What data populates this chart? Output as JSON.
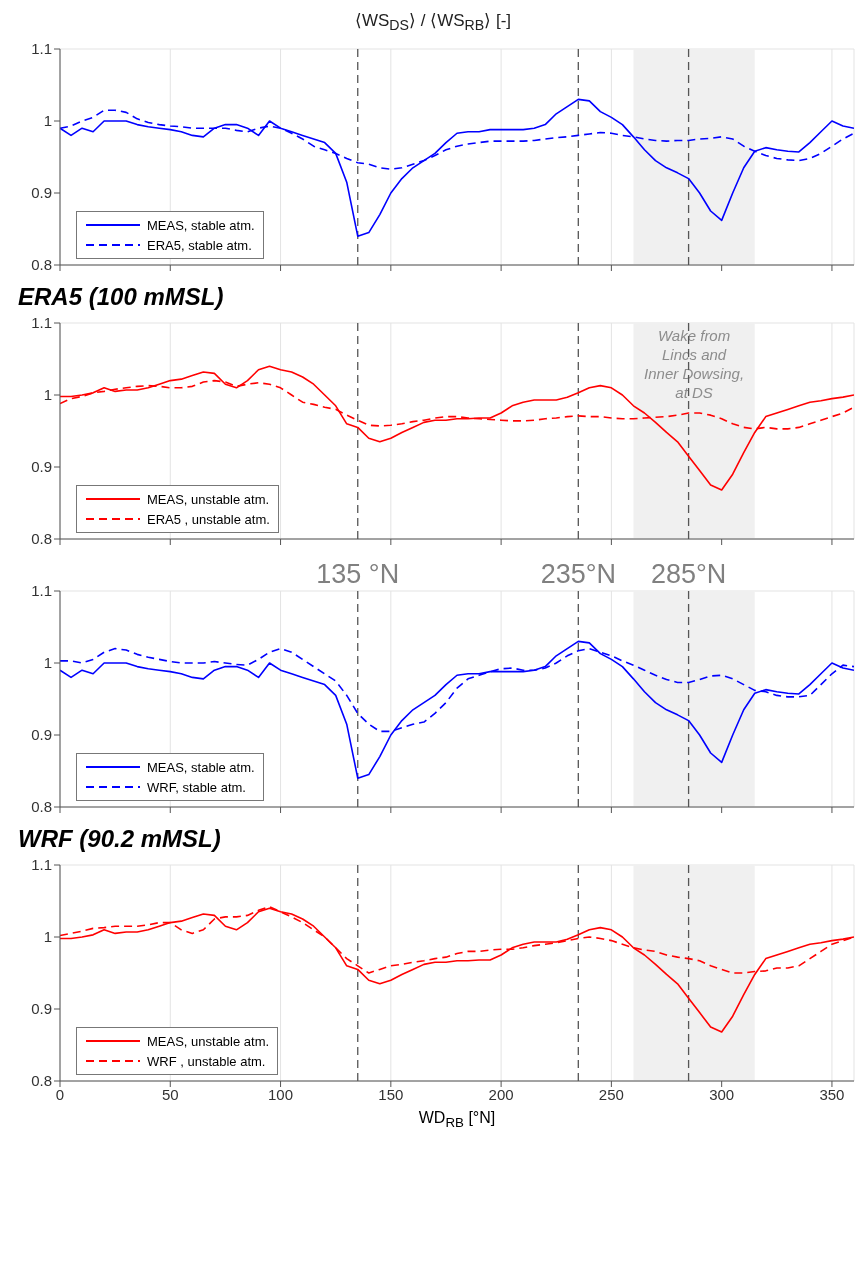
{
  "chart_data": [
    {
      "type": "line",
      "title": "⟨WS$_{DS}$⟩ / ⟨WS$_{RB}$⟩ [-]",
      "x": [
        0,
        5,
        10,
        15,
        20,
        25,
        30,
        35,
        40,
        45,
        50,
        55,
        60,
        65,
        70,
        75,
        80,
        85,
        90,
        95,
        100,
        105,
        110,
        115,
        120,
        125,
        130,
        135,
        140,
        145,
        150,
        155,
        160,
        165,
        170,
        175,
        180,
        185,
        190,
        195,
        200,
        205,
        210,
        215,
        220,
        225,
        230,
        235,
        240,
        245,
        250,
        255,
        260,
        265,
        270,
        275,
        280,
        285,
        290,
        295,
        300,
        305,
        310,
        315,
        320,
        325,
        330,
        335,
        340,
        345,
        350,
        355,
        360
      ],
      "xlim": [
        0,
        360
      ],
      "xticks": [
        0,
        50,
        100,
        150,
        200,
        250,
        300,
        350
      ],
      "ylim": [
        0.8,
        1.1
      ],
      "yticks": [
        0.8,
        0.9,
        1,
        1.1
      ],
      "grid": true,
      "legend": "bottom left",
      "tick_labels": "y",
      "series": [
        {
          "name": "MEAS, stable atm.",
          "color": "#0000ff",
          "line_style": "solid",
          "values": [
            0.99,
            0.98,
            0.99,
            0.985,
            1.0,
            1.0,
            1.0,
            0.995,
            0.992,
            0.99,
            0.988,
            0.985,
            0.98,
            0.978,
            0.99,
            0.995,
            0.995,
            0.99,
            0.98,
            1.0,
            0.99,
            0.985,
            0.98,
            0.975,
            0.97,
            0.955,
            0.915,
            0.84,
            0.845,
            0.87,
            0.9,
            0.92,
            0.935,
            0.945,
            0.955,
            0.97,
            0.983,
            0.985,
            0.985,
            0.988,
            0.988,
            0.988,
            0.988,
            0.99,
            0.995,
            1.01,
            1.02,
            1.03,
            1.028,
            1.013,
            1.005,
            0.995,
            0.978,
            0.96,
            0.945,
            0.935,
            0.928,
            0.92,
            0.9,
            0.875,
            0.862,
            0.9,
            0.935,
            0.958,
            0.963,
            0.96,
            0.958,
            0.957,
            0.97,
            0.985,
            1.0,
            0.993,
            0.99
          ]
        },
        {
          "name": "ERA5, stable atm.",
          "color": "#0000ff",
          "line_style": "dashed",
          "values": [
            0.99,
            0.993,
            1.0,
            1.005,
            1.015,
            1.015,
            1.012,
            1.003,
            0.998,
            0.995,
            0.993,
            0.992,
            0.99,
            0.99,
            0.99,
            0.99,
            0.987,
            0.985,
            0.99,
            0.993,
            0.99,
            0.983,
            0.975,
            0.965,
            0.96,
            0.955,
            0.948,
            0.942,
            0.94,
            0.935,
            0.933,
            0.935,
            0.94,
            0.945,
            0.952,
            0.96,
            0.965,
            0.968,
            0.97,
            0.972,
            0.972,
            0.972,
            0.972,
            0.973,
            0.975,
            0.977,
            0.978,
            0.98,
            0.982,
            0.984,
            0.983,
            0.98,
            0.978,
            0.975,
            0.973,
            0.972,
            0.973,
            0.973,
            0.975,
            0.976,
            0.978,
            0.975,
            0.965,
            0.958,
            0.952,
            0.948,
            0.946,
            0.945,
            0.948,
            0.955,
            0.965,
            0.975,
            0.983
          ]
        }
      ],
      "ref_lines": [
        {
          "axis": "x",
          "value": 135,
          "color": "#555555",
          "line_style": "dashed"
        },
        {
          "axis": "x",
          "value": 235,
          "color": "#555555",
          "line_style": "dashed"
        },
        {
          "axis": "x",
          "value": 285,
          "color": "#555555",
          "line_style": "dashed"
        }
      ],
      "bands": [
        {
          "axis": "x",
          "from": 260,
          "to": 315,
          "color": "#f0f0f0"
        }
      ]
    },
    {
      "type": "line",
      "title": "ERA5 (100 mMSL)",
      "x": [
        0,
        5,
        10,
        15,
        20,
        25,
        30,
        35,
        40,
        45,
        50,
        55,
        60,
        65,
        70,
        75,
        80,
        85,
        90,
        95,
        100,
        105,
        110,
        115,
        120,
        125,
        130,
        135,
        140,
        145,
        150,
        155,
        160,
        165,
        170,
        175,
        180,
        185,
        190,
        195,
        200,
        205,
        210,
        215,
        220,
        225,
        230,
        235,
        240,
        245,
        250,
        255,
        260,
        265,
        270,
        275,
        280,
        285,
        290,
        295,
        300,
        305,
        310,
        315,
        320,
        325,
        330,
        335,
        340,
        345,
        350,
        355,
        360
      ],
      "xlim": [
        0,
        360
      ],
      "xticks": [
        0,
        50,
        100,
        150,
        200,
        250,
        300,
        350
      ],
      "ylim": [
        0.8,
        1.1
      ],
      "yticks": [
        0.8,
        0.9,
        1,
        1.1
      ],
      "grid": true,
      "legend": "bottom left",
      "tick_labels": "y",
      "series": [
        {
          "name": "MEAS, unstable atm.",
          "color": "#ff0000",
          "line_style": "solid",
          "values": [
            0.998,
            0.998,
            1.0,
            1.003,
            1.01,
            1.005,
            1.007,
            1.007,
            1.01,
            1.015,
            1.02,
            1.022,
            1.027,
            1.032,
            1.03,
            1.015,
            1.01,
            1.02,
            1.035,
            1.04,
            1.035,
            1.032,
            1.025,
            1.015,
            1.0,
            0.985,
            0.96,
            0.955,
            0.94,
            0.935,
            0.94,
            0.948,
            0.955,
            0.962,
            0.965,
            0.965,
            0.967,
            0.967,
            0.968,
            0.968,
            0.975,
            0.985,
            0.99,
            0.993,
            0.993,
            0.993,
            0.997,
            1.003,
            1.01,
            1.013,
            1.01,
            1.0,
            0.985,
            0.975,
            0.962,
            0.948,
            0.935,
            0.915,
            0.895,
            0.875,
            0.868,
            0.89,
            0.92,
            0.948,
            0.97,
            0.975,
            0.98,
            0.985,
            0.99,
            0.992,
            0.995,
            0.997,
            1.0
          ]
        },
        {
          "name": "ERA5 , unstable atm.",
          "color": "#ff0000",
          "line_style": "dashed",
          "values": [
            0.988,
            0.995,
            0.998,
            1.003,
            1.005,
            1.008,
            1.01,
            1.012,
            1.013,
            1.012,
            1.01,
            1.01,
            1.012,
            1.018,
            1.02,
            1.018,
            1.012,
            1.015,
            1.017,
            1.015,
            1.01,
            1.0,
            0.99,
            0.987,
            0.983,
            0.98,
            0.972,
            0.965,
            0.958,
            0.957,
            0.958,
            0.96,
            0.963,
            0.965,
            0.968,
            0.97,
            0.97,
            0.968,
            0.967,
            0.966,
            0.965,
            0.964,
            0.964,
            0.965,
            0.967,
            0.968,
            0.97,
            0.971,
            0.97,
            0.97,
            0.968,
            0.967,
            0.967,
            0.968,
            0.969,
            0.97,
            0.972,
            0.975,
            0.975,
            0.972,
            0.967,
            0.96,
            0.955,
            0.953,
            0.955,
            0.953,
            0.953,
            0.955,
            0.96,
            0.965,
            0.97,
            0.975,
            0.983
          ]
        }
      ],
      "ref_lines": [
        {
          "axis": "x",
          "value": 135,
          "color": "#555555",
          "line_style": "dashed"
        },
        {
          "axis": "x",
          "value": 235,
          "color": "#555555",
          "line_style": "dashed"
        },
        {
          "axis": "x",
          "value": 285,
          "color": "#555555",
          "line_style": "dashed"
        }
      ],
      "bands": [
        {
          "axis": "x",
          "from": 260,
          "to": 315,
          "color": "#f0f0f0",
          "label": "Wake from Lincs and Inner Dowsing, at DS"
        }
      ]
    },
    {
      "type": "line",
      "x": [
        0,
        5,
        10,
        15,
        20,
        25,
        30,
        35,
        40,
        45,
        50,
        55,
        60,
        65,
        70,
        75,
        80,
        85,
        90,
        95,
        100,
        105,
        110,
        115,
        120,
        125,
        130,
        135,
        140,
        145,
        150,
        155,
        160,
        165,
        170,
        175,
        180,
        185,
        190,
        195,
        200,
        205,
        210,
        215,
        220,
        225,
        230,
        235,
        240,
        245,
        250,
        255,
        260,
        265,
        270,
        275,
        280,
        285,
        290,
        295,
        300,
        305,
        310,
        315,
        320,
        325,
        330,
        335,
        340,
        345,
        350,
        355,
        360
      ],
      "xlim": [
        0,
        360
      ],
      "xticks": [
        0,
        50,
        100,
        150,
        200,
        250,
        300,
        350
      ],
      "ylim": [
        0.8,
        1.1
      ],
      "yticks": [
        0.8,
        0.9,
        1,
        1.1
      ],
      "grid": true,
      "legend": "bottom left",
      "tick_labels": "y",
      "series": [
        {
          "name": "MEAS, stable atm.",
          "color": "#0000ff",
          "line_style": "solid",
          "values": [
            0.99,
            0.98,
            0.99,
            0.985,
            1.0,
            1.0,
            1.0,
            0.995,
            0.992,
            0.99,
            0.988,
            0.985,
            0.98,
            0.978,
            0.99,
            0.995,
            0.995,
            0.99,
            0.98,
            1.0,
            0.99,
            0.985,
            0.98,
            0.975,
            0.97,
            0.955,
            0.915,
            0.84,
            0.845,
            0.87,
            0.9,
            0.92,
            0.935,
            0.945,
            0.955,
            0.97,
            0.983,
            0.985,
            0.985,
            0.988,
            0.988,
            0.988,
            0.988,
            0.99,
            0.995,
            1.01,
            1.02,
            1.03,
            1.028,
            1.013,
            1.005,
            0.995,
            0.978,
            0.96,
            0.945,
            0.935,
            0.928,
            0.92,
            0.9,
            0.875,
            0.862,
            0.9,
            0.935,
            0.958,
            0.963,
            0.96,
            0.958,
            0.957,
            0.97,
            0.985,
            1.0,
            0.993,
            0.99
          ]
        },
        {
          "name": "WRF, stable atm.",
          "color": "#0000ff",
          "line_style": "dashed",
          "values": [
            1.003,
            1.003,
            1.0,
            1.005,
            1.015,
            1.02,
            1.018,
            1.012,
            1.008,
            1.005,
            1.002,
            1.0,
            1.0,
            1.0,
            1.002,
            1.0,
            0.998,
            0.997,
            1.005,
            1.015,
            1.02,
            1.015,
            1.005,
            0.995,
            0.985,
            0.975,
            0.955,
            0.93,
            0.915,
            0.905,
            0.905,
            0.91,
            0.915,
            0.918,
            0.93,
            0.945,
            0.965,
            0.978,
            0.983,
            0.988,
            0.992,
            0.993,
            0.99,
            0.99,
            0.993,
            1.0,
            1.01,
            1.017,
            1.02,
            1.015,
            1.01,
            1.003,
            0.997,
            0.99,
            0.983,
            0.977,
            0.973,
            0.973,
            0.977,
            0.982,
            0.983,
            0.978,
            0.97,
            0.962,
            0.96,
            0.955,
            0.953,
            0.953,
            0.955,
            0.97,
            0.985,
            0.997,
            0.995
          ]
        }
      ],
      "ref_lines": [
        {
          "axis": "x",
          "value": 135,
          "label": "135 °N",
          "color": "#555555",
          "line_style": "dashed"
        },
        {
          "axis": "x",
          "value": 235,
          "label": "235°N",
          "color": "#555555",
          "line_style": "dashed"
        },
        {
          "axis": "x",
          "value": 285,
          "label": "285°N",
          "color": "#555555",
          "line_style": "dashed"
        }
      ],
      "bands": [
        {
          "axis": "x",
          "from": 260,
          "to": 315,
          "color": "#f0f0f0"
        }
      ]
    },
    {
      "type": "line",
      "title": "WRF (90.2 mMSL)",
      "xlabel": "WD$_{RB}$ [°N]",
      "x": [
        0,
        5,
        10,
        15,
        20,
        25,
        30,
        35,
        40,
        45,
        50,
        55,
        60,
        65,
        70,
        75,
        80,
        85,
        90,
        95,
        100,
        105,
        110,
        115,
        120,
        125,
        130,
        135,
        140,
        145,
        150,
        155,
        160,
        165,
        170,
        175,
        180,
        185,
        190,
        195,
        200,
        205,
        210,
        215,
        220,
        225,
        230,
        235,
        240,
        245,
        250,
        255,
        260,
        265,
        270,
        275,
        280,
        285,
        290,
        295,
        300,
        305,
        310,
        315,
        320,
        325,
        330,
        335,
        340,
        345,
        350,
        355,
        360
      ],
      "xlim": [
        0,
        360
      ],
      "xticks": [
        0,
        50,
        100,
        150,
        200,
        250,
        300,
        350
      ],
      "ylim": [
        0.8,
        1.1
      ],
      "yticks": [
        0.8,
        0.9,
        1,
        1.1
      ],
      "grid": true,
      "legend": "bottom left",
      "series": [
        {
          "name": "MEAS, unstable atm.",
          "color": "#ff0000",
          "line_style": "solid",
          "values": [
            0.998,
            0.998,
            1.0,
            1.003,
            1.01,
            1.005,
            1.007,
            1.007,
            1.01,
            1.015,
            1.02,
            1.022,
            1.027,
            1.032,
            1.03,
            1.015,
            1.01,
            1.02,
            1.035,
            1.04,
            1.035,
            1.032,
            1.025,
            1.015,
            1.0,
            0.985,
            0.96,
            0.955,
            0.94,
            0.935,
            0.94,
            0.948,
            0.955,
            0.962,
            0.965,
            0.965,
            0.967,
            0.967,
            0.968,
            0.968,
            0.975,
            0.985,
            0.99,
            0.993,
            0.993,
            0.993,
            0.997,
            1.003,
            1.01,
            1.013,
            1.01,
            1.0,
            0.985,
            0.975,
            0.962,
            0.948,
            0.935,
            0.915,
            0.895,
            0.875,
            0.868,
            0.89,
            0.92,
            0.948,
            0.97,
            0.975,
            0.98,
            0.985,
            0.99,
            0.992,
            0.995,
            0.997,
            1.0
          ]
        },
        {
          "name": "WRF , unstable atm.",
          "color": "#ff0000",
          "line_style": "dashed",
          "values": [
            1.002,
            1.005,
            1.008,
            1.012,
            1.013,
            1.015,
            1.015,
            1.015,
            1.017,
            1.02,
            1.02,
            1.01,
            1.005,
            1.01,
            1.025,
            1.028,
            1.028,
            1.03,
            1.037,
            1.042,
            1.035,
            1.028,
            1.02,
            1.01,
            1.0,
            0.985,
            0.97,
            0.96,
            0.95,
            0.955,
            0.96,
            0.962,
            0.965,
            0.967,
            0.97,
            0.972,
            0.977,
            0.98,
            0.98,
            0.982,
            0.983,
            0.983,
            0.985,
            0.988,
            0.99,
            0.992,
            0.995,
            0.998,
            1.0,
            0.998,
            0.995,
            0.99,
            0.985,
            0.982,
            0.98,
            0.975,
            0.972,
            0.97,
            0.967,
            0.96,
            0.955,
            0.95,
            0.95,
            0.952,
            0.953,
            0.957,
            0.957,
            0.96,
            0.97,
            0.98,
            0.99,
            0.995,
            1.0
          ]
        }
      ],
      "ref_lines": [
        {
          "axis": "x",
          "value": 135,
          "color": "#555555",
          "line_style": "dashed"
        },
        {
          "axis": "x",
          "value": 235,
          "color": "#555555",
          "line_style": "dashed"
        },
        {
          "axis": "x",
          "value": 285,
          "color": "#555555",
          "line_style": "dashed"
        }
      ],
      "bands": [
        {
          "axis": "x",
          "from": 260,
          "to": 315,
          "color": "#f0f0f0"
        }
      ]
    }
  ]
}
